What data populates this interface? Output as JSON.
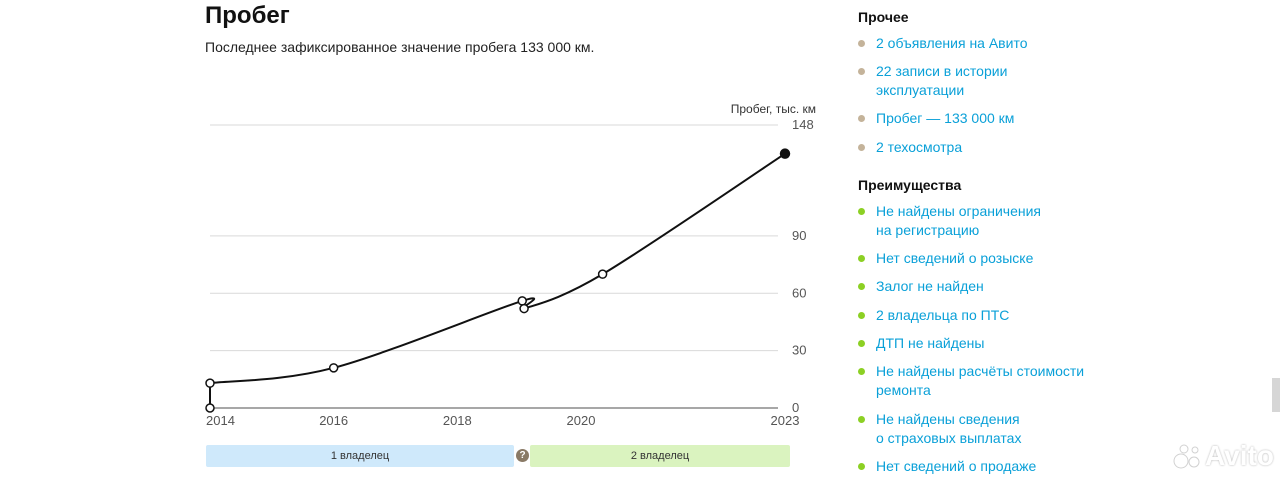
{
  "mileage": {
    "title": "Пробег",
    "subtitle": "Последнее зафиксированное значение пробега 133 000 км."
  },
  "chart_data": {
    "type": "line",
    "ylabel": "Пробег, тыс. км",
    "ylim": [
      0,
      148
    ],
    "xlim": [
      2014,
      2023.3
    ],
    "y_ticks": [
      "0",
      "30",
      "60",
      "90",
      "148"
    ],
    "y_tick_values": [
      0,
      30,
      60,
      90,
      148
    ],
    "x_ticks": [
      "2014",
      "2016",
      "2018",
      "2020",
      "2023"
    ],
    "x_tick_values": [
      2014,
      2016,
      2018,
      2020,
      2023.3
    ],
    "series": [
      {
        "points": [
          {
            "x": 2014.0,
            "y": 0
          },
          {
            "x": 2014.0,
            "y": 13
          },
          {
            "x": 2016.0,
            "y": 21
          },
          {
            "x": 2019.05,
            "y": 56
          },
          {
            "x": 2019.08,
            "y": 52
          },
          {
            "x": 2020.35,
            "y": 70
          },
          {
            "x": 2023.3,
            "y": 133
          }
        ],
        "last_point_filled": true
      }
    ],
    "grid": true
  },
  "owners": {
    "first": "1 владелец",
    "second": "2 владелец",
    "gap_icon": "question-icon",
    "gap_symbol": "?",
    "first_color": "#cfe9fb",
    "second_color": "#daf3bf"
  },
  "sidebar": {
    "other_title": "Прочее",
    "other_items": [
      "2 объявления на Авито",
      "22 записи в истории\nэксплуатации",
      "Пробег — 133 000 км",
      "2 техосмотра"
    ],
    "other_dot_color": "#c4b39a",
    "benefits_title": "Преимущества",
    "benefits_items": [
      "Не найдены ограничения\nна регистрацию",
      "Нет сведений о розыске",
      "Залог не найден",
      "2 владельца по ПТС",
      "ДТП не найдены",
      "Не найдены расчёты стоимости\nремонта",
      "Не найдены сведения\nо страховых выплатах",
      "Нет сведений о продаже"
    ],
    "benefits_dot_color": "#8cd024",
    "link_color": "#0aa0d8"
  },
  "watermark": {
    "text": "Avito",
    "icon": "avito-logo-icon"
  }
}
